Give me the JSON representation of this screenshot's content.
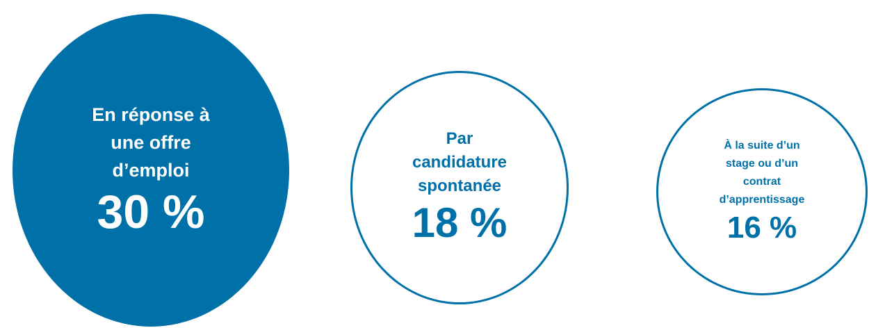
{
  "items": [
    {
      "label_lines": [
        "En réponse à",
        "une offre",
        "d’emploi"
      ],
      "value": "30 %"
    },
    {
      "label_lines": [
        "Par",
        "candidature",
        "spontanée"
      ],
      "value": "18 %"
    },
    {
      "label_lines": [
        "À la suite d’un",
        "stage ou d’un",
        "contrat",
        "d’apprentissage"
      ],
      "value": "16 %"
    }
  ]
}
